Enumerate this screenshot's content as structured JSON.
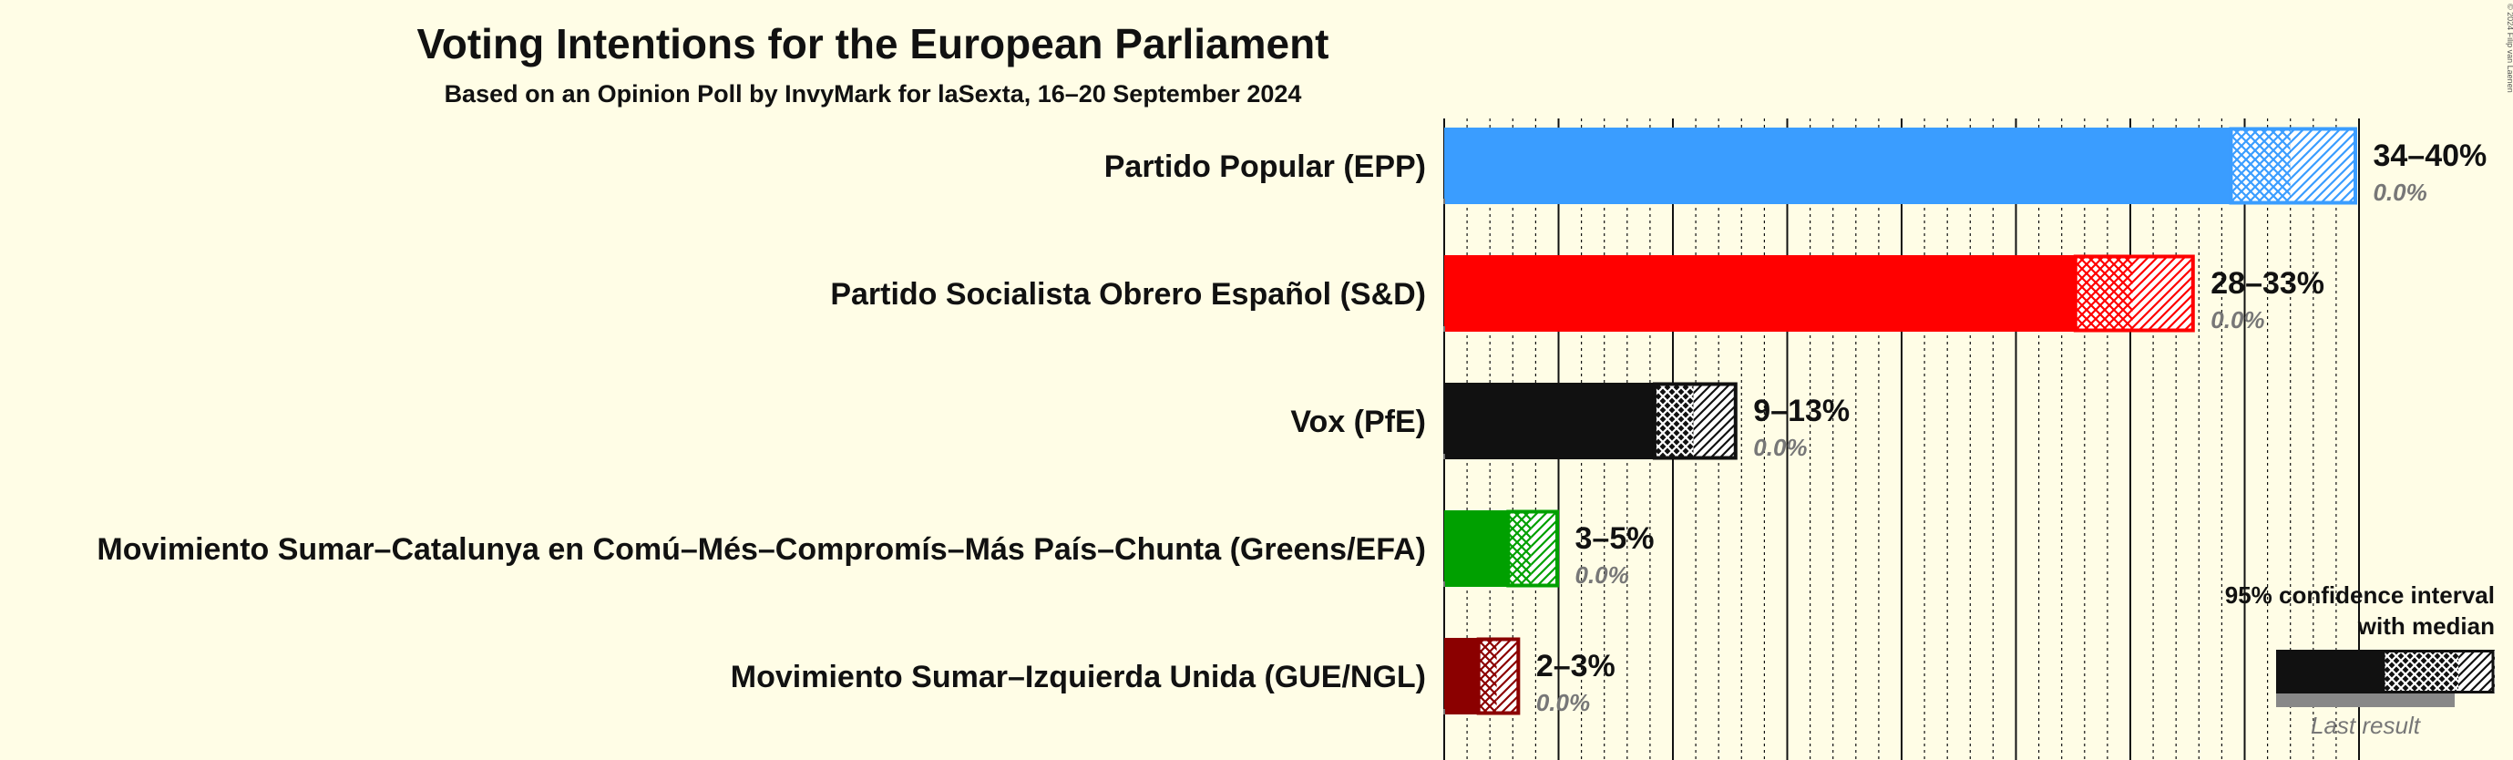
{
  "chart_data": {
    "type": "bar",
    "orientation": "horizontal",
    "title": "Voting Intentions for the European Parliament",
    "subtitle": "Based on an Opinion Poll by InvyMark for laSexta, 16–20 September 2024",
    "xlim": [
      0,
      40
    ],
    "parties": [
      {
        "name": "Partido Popular (EPP)",
        "low": 34.4,
        "median": 37.0,
        "high": 39.9,
        "range_label": "34–40%",
        "last_label": "0.0%",
        "color": "#3A9DFF",
        "dark": false
      },
      {
        "name": "Partido Socialista Obrero Español (S&D)",
        "low": 27.6,
        "median": 30.1,
        "high": 32.8,
        "range_label": "28–33%",
        "last_label": "0.0%",
        "color": "#FF0000",
        "dark": false
      },
      {
        "name": "Vox (PfE)",
        "low": 9.2,
        "median": 10.9,
        "high": 12.8,
        "range_label": "9–13%",
        "last_label": "0.0%",
        "color": "#111111",
        "dark": true
      },
      {
        "name": "Movimiento Sumar–Catalunya en Comú–Més–Compromís–Más País–Chunta (Greens/EFA)",
        "low": 2.8,
        "median": 3.8,
        "high": 5.0,
        "range_label": "3–5%",
        "last_label": "0.0%",
        "color": "#00A000",
        "dark": false
      },
      {
        "name": "Movimiento Sumar–Izquierda Unida (GUE/NGL)",
        "low": 1.5,
        "median": 2.3,
        "high": 3.3,
        "range_label": "2–3%",
        "last_label": "0.0%",
        "color": "#8B0000",
        "dark": false
      }
    ]
  },
  "legend": {
    "line1": "95% confidence interval",
    "line2": "with median",
    "last_result": "Last result",
    "color": "#111111"
  },
  "copyright": "© 2024 Filip van Laenen"
}
